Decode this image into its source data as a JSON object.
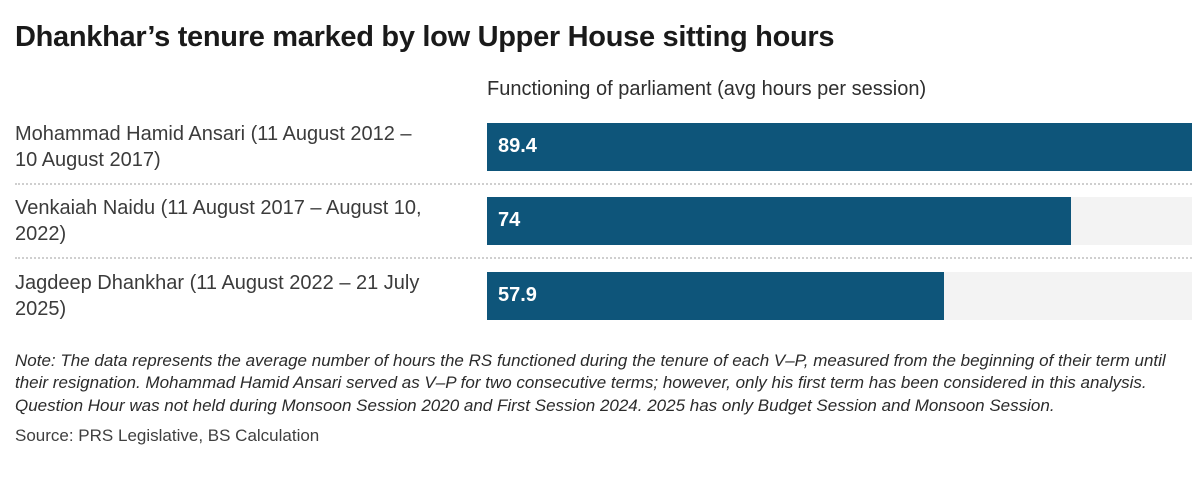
{
  "header": {
    "title": "Dhankhar’s tenure marked by low Upper House sitting hours"
  },
  "chart_data": {
    "type": "bar",
    "orientation": "horizontal",
    "title": "Dhankhar’s tenure marked by low Upper House sitting hours",
    "subtitle": "Functioning of parliament (avg hours per session)",
    "categories": [
      "Mohammad Hamid Ansari (11 August 2012 – 10 August 2017)",
      "Venkaiah Naidu (11 August 2017 – August 10, 2022)",
      "Jagdeep Dhankhar (11 August 2022 – 21 July 2025)"
    ],
    "values": [
      89.4,
      74,
      57.9
    ],
    "value_labels": [
      "89.4",
      "74",
      "57.9"
    ],
    "xlabel": "",
    "ylabel": "",
    "xlim": [
      0,
      89.4
    ],
    "grid": false,
    "legend": "none",
    "colors": {
      "bar": "#0e557a",
      "track": "#f3f3f3",
      "value_label": "#ffffff"
    }
  },
  "footer": {
    "note": "Note: The data represents the average number of hours the RS functioned during the tenure of each V–P, measured from the beginning of their term until their resignation. Mohammad Hamid Ansari served as V–P for two consecutive terms; however, only his first term has been considered in this analysis. Question Hour was not held during Monsoon Session 2020 and First Session 2024. 2025 has only Budget Session and Monsoon Session.",
    "source": "Source: PRS Legislative, BS Calculation"
  }
}
